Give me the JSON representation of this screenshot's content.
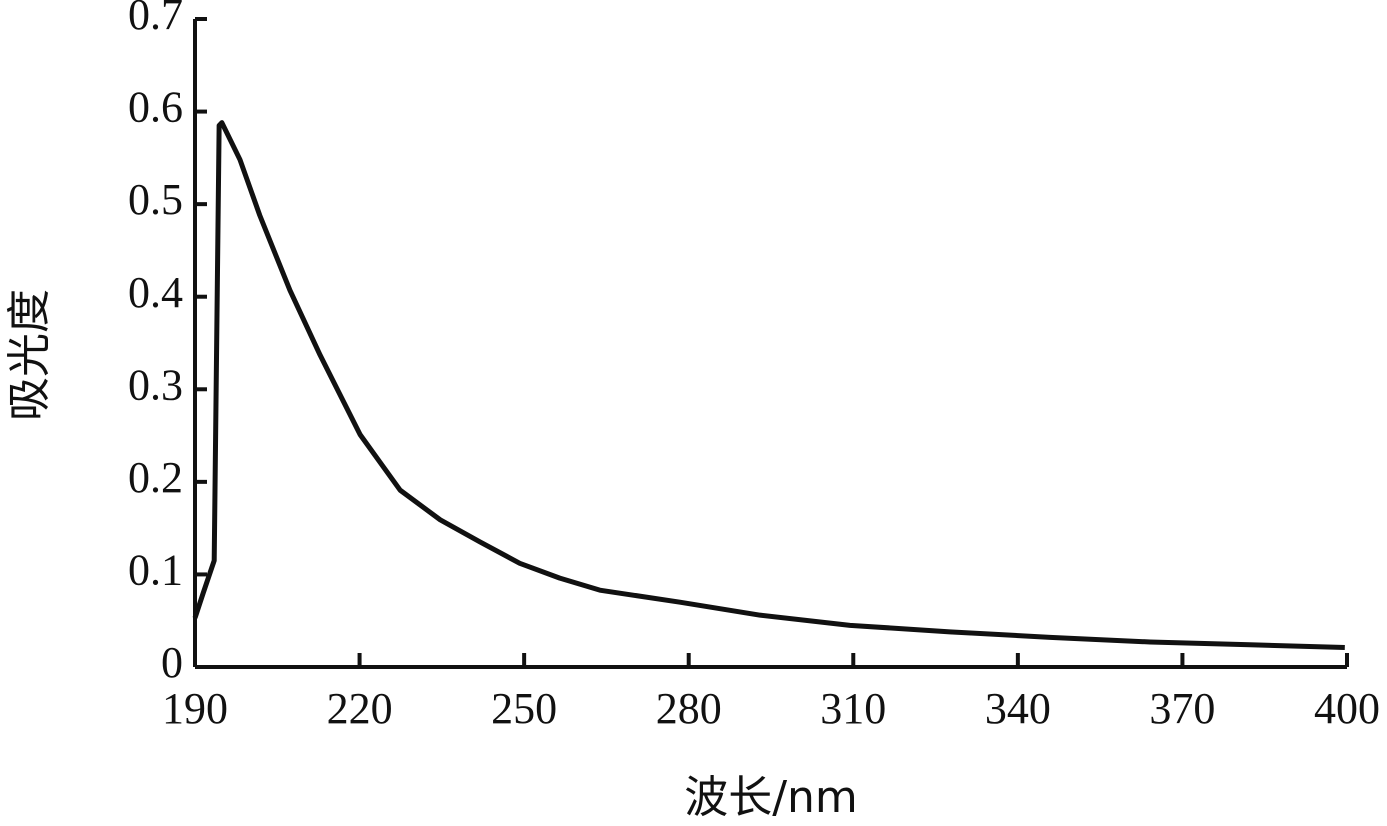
{
  "chart_data": {
    "type": "line",
    "x_label": "波长/nm",
    "y_label": "吸光度",
    "x": [
      190,
      191.5,
      193.5,
      194.4,
      194.9,
      198.2,
      201.8,
      207.3,
      212.8,
      220.1,
      227.4,
      234.7,
      242,
      249.2,
      256.5,
      263.8,
      278.4,
      293,
      309.4,
      327.6,
      345.9,
      364.1,
      382.3,
      399.6
    ],
    "series": [
      {
        "name": "吸光度",
        "color": "#111111",
        "values": [
          0.053,
          0.08,
          0.115,
          0.585,
          0.588,
          0.548,
          0.488,
          0.407,
          0.337,
          0.251,
          0.191,
          0.159,
          0.135,
          0.112,
          0.096,
          0.083,
          0.07,
          0.056,
          0.045,
          0.038,
          0.032,
          0.027,
          0.024,
          0.021
        ]
      }
    ],
    "xlim": [
      190,
      400
    ],
    "xticks": [
      190,
      220,
      250,
      280,
      310,
      340,
      370,
      400
    ],
    "ylim": [
      0,
      0.7
    ],
    "yticks": [
      0,
      0.1,
      0.2,
      0.3,
      0.4,
      0.5,
      0.6,
      0.7
    ],
    "grid": false
  }
}
